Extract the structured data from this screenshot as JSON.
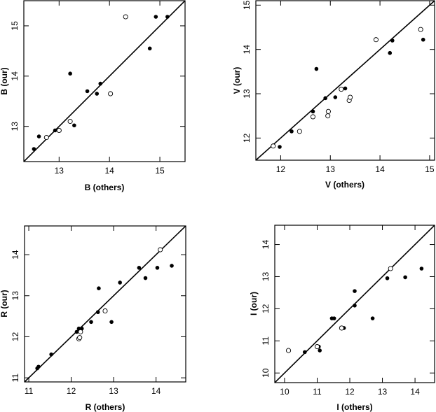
{
  "chart_data": [
    {
      "type": "scatter",
      "title": "",
      "xlabel": "B (others)",
      "ylabel": "B (our)",
      "xlim": [
        12.3,
        15.5
      ],
      "ylim": [
        12.3,
        15.5
      ],
      "xticks": [
        13,
        14,
        15
      ],
      "yticks": [
        13,
        14,
        15
      ],
      "reference_line": "y = x",
      "series": [
        {
          "marker": "filled-circle",
          "points": [
            [
              12.5,
              12.55
            ],
            [
              12.6,
              12.8
            ],
            [
              12.92,
              12.92
            ],
            [
              13.22,
              14.05
            ],
            [
              13.3,
              13.02
            ],
            [
              13.56,
              13.7
            ],
            [
              13.75,
              13.65
            ],
            [
              13.82,
              13.85
            ],
            [
              14.8,
              14.55
            ],
            [
              14.92,
              15.18
            ],
            [
              15.15,
              15.18
            ]
          ]
        },
        {
          "marker": "open-circle",
          "points": [
            [
              12.75,
              12.78
            ],
            [
              13.0,
              12.92
            ],
            [
              13.22,
              13.1
            ],
            [
              14.02,
              13.65
            ],
            [
              14.32,
              15.18
            ]
          ]
        }
      ]
    },
    {
      "type": "scatter",
      "title": "",
      "xlabel": "V (others)",
      "ylabel": "V (our)",
      "xlim": [
        11.5,
        15.1
      ],
      "ylim": [
        11.5,
        15.1
      ],
      "xticks": [
        12,
        13,
        14,
        15
      ],
      "yticks": [
        12,
        13,
        14,
        15
      ],
      "reference_line": "y = x",
      "series": [
        {
          "marker": "filled-circle",
          "points": [
            [
              11.98,
              11.8
            ],
            [
              12.22,
              12.15
            ],
            [
              12.65,
              12.6
            ],
            [
              12.72,
              13.56
            ],
            [
              12.9,
              12.9
            ],
            [
              13.1,
              12.92
            ],
            [
              13.3,
              13.12
            ],
            [
              14.2,
              13.92
            ],
            [
              14.25,
              14.2
            ],
            [
              14.87,
              14.22
            ]
          ]
        },
        {
          "marker": "open-circle",
          "points": [
            [
              11.85,
              11.82
            ],
            [
              12.38,
              12.15
            ],
            [
              12.65,
              12.48
            ],
            [
              12.95,
              12.5
            ],
            [
              12.96,
              12.6
            ],
            [
              13.22,
              13.1
            ],
            [
              13.38,
              12.85
            ],
            [
              13.4,
              12.92
            ],
            [
              13.92,
              14.22
            ],
            [
              14.82,
              14.45
            ]
          ]
        }
      ]
    },
    {
      "type": "scatter",
      "title": "",
      "xlabel": "R (others)",
      "ylabel": "R (our)",
      "xlim": [
        10.9,
        14.7
      ],
      "ylim": [
        10.9,
        14.7
      ],
      "xticks": [
        11,
        12,
        13,
        14
      ],
      "yticks": [
        11,
        12,
        13,
        14
      ],
      "reference_line": "y = x",
      "series": [
        {
          "marker": "filled-circle",
          "points": [
            [
              11.2,
              11.23
            ],
            [
              11.23,
              11.27
            ],
            [
              11.53,
              11.57
            ],
            [
              12.13,
              12.12
            ],
            [
              12.18,
              12.2
            ],
            [
              12.25,
              12.2
            ],
            [
              12.47,
              12.36
            ],
            [
              12.63,
              12.6
            ],
            [
              12.65,
              13.18
            ],
            [
              12.95,
              12.36
            ],
            [
              13.15,
              13.32
            ],
            [
              13.6,
              13.68
            ],
            [
              13.75,
              13.43
            ],
            [
              14.03,
              13.68
            ],
            [
              14.37,
              13.73
            ]
          ]
        },
        {
          "marker": "open-circle",
          "points": [
            [
              12.18,
              11.95
            ],
            [
              12.2,
              11.98
            ],
            [
              12.22,
              12.12
            ],
            [
              12.8,
              12.63
            ],
            [
              14.1,
              14.12
            ]
          ]
        }
      ]
    },
    {
      "type": "scatter",
      "title": "",
      "xlabel": "I (others)",
      "ylabel": "I (our)",
      "xlim": [
        9.7,
        14.6
      ],
      "ylim": [
        9.7,
        14.6
      ],
      "xticks": [
        10,
        11,
        12,
        13,
        14
      ],
      "yticks": [
        10,
        11,
        12,
        13,
        14
      ],
      "reference_line": "y = x",
      "series": [
        {
          "marker": "filled-circle",
          "points": [
            [
              10.62,
              10.65
            ],
            [
              11.05,
              10.82
            ],
            [
              11.08,
              10.7
            ],
            [
              11.45,
              11.7
            ],
            [
              11.52,
              11.7
            ],
            [
              11.82,
              11.4
            ],
            [
              12.15,
              12.1
            ],
            [
              12.15,
              12.55
            ],
            [
              12.7,
              11.7
            ],
            [
              13.15,
              12.95
            ],
            [
              13.7,
              12.98
            ],
            [
              14.2,
              13.25
            ]
          ]
        },
        {
          "marker": "open-circle",
          "points": [
            [
              10.12,
              10.7
            ],
            [
              11.0,
              10.82
            ],
            [
              11.75,
              11.4
            ],
            [
              13.25,
              13.25
            ]
          ]
        }
      ]
    }
  ]
}
